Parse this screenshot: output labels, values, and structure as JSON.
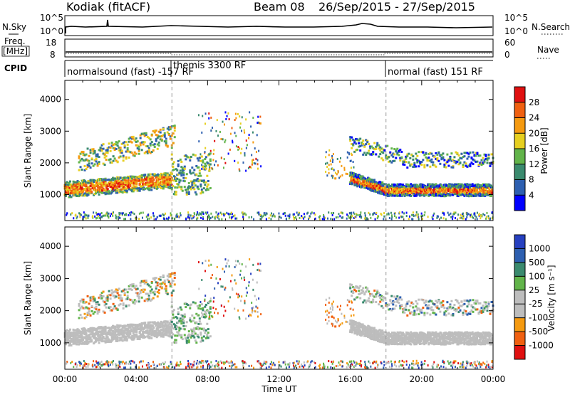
{
  "header": {
    "station": "Kodiak (fitACF)",
    "beam": "Beam 08",
    "date_range": "26/Sep/2015 - 27/Sep/2015"
  },
  "strip": {
    "nsky_label": "N.Sky",
    "nsearch_label": "N.Search",
    "freq_label_line1": "Freq.",
    "freq_label_line2": "[MHz]",
    "nave_label": "Nave",
    "cpid_label": "CPID",
    "nsky_ticks": [
      "10^5",
      "10^0"
    ],
    "nsearch_ticks": [
      "10^5",
      "10^0"
    ],
    "freq_ticks": [
      "18",
      "8"
    ],
    "nave_ticks": [
      "60",
      "0"
    ],
    "modes": [
      {
        "label": "normalsound (fast) -157 RF"
      },
      {
        "label": "themis 3300 RF"
      },
      {
        "label": "normal (fast) 151 RF"
      }
    ]
  },
  "colors": {
    "power": [
      "#0000ff",
      "#2d5fb0",
      "#3a8a6e",
      "#62b44a",
      "#e6cf1f",
      "#f59a10",
      "#f06010",
      "#e01010"
    ],
    "velocity": [
      "#e01010",
      "#f06010",
      "#f59a10",
      "#bdbdbd",
      "#bdbdbd",
      "#62b44a",
      "#3a8a6e",
      "#2d5fb0",
      "#2640c0"
    ]
  },
  "chart_data": [
    {
      "type": "heatmap",
      "panel": "power",
      "xlabel": "Time UT",
      "ylabel": "Slant Range [km]",
      "x_ticks": [
        "00:00",
        "04:00",
        "08:00",
        "12:00",
        "16:00",
        "20:00",
        "00:00"
      ],
      "xlim_hours": [
        0,
        24
      ],
      "y_ticks": [
        "1000",
        "2000",
        "3000",
        "4000"
      ],
      "ylim": [
        180,
        4600
      ],
      "colorbar_label": "Power [dB]",
      "colorbar_ticks": [
        "4",
        "8",
        "12",
        "16",
        "20",
        "24",
        "28"
      ],
      "colorbar_range": [
        0,
        32
      ],
      "mode_change_times_hours": [
        6.0,
        18.0
      ]
    },
    {
      "type": "heatmap",
      "panel": "velocity",
      "xlabel": "Time UT",
      "ylabel": "Slant Range [km]",
      "x_ticks": [
        "00:00",
        "04:00",
        "08:00",
        "12:00",
        "16:00",
        "20:00",
        "00:00"
      ],
      "xlim_hours": [
        0,
        24
      ],
      "y_ticks": [
        "1000",
        "2000",
        "3000",
        "4000"
      ],
      "ylim": [
        180,
        4600
      ],
      "colorbar_label": "Velocity [m s⁻¹]",
      "colorbar_ticks": [
        "1000",
        "500",
        "100",
        "25",
        "-25",
        "-100",
        "-500",
        "-1000"
      ],
      "mode_change_times_hours": [
        6.0,
        18.0
      ]
    }
  ]
}
